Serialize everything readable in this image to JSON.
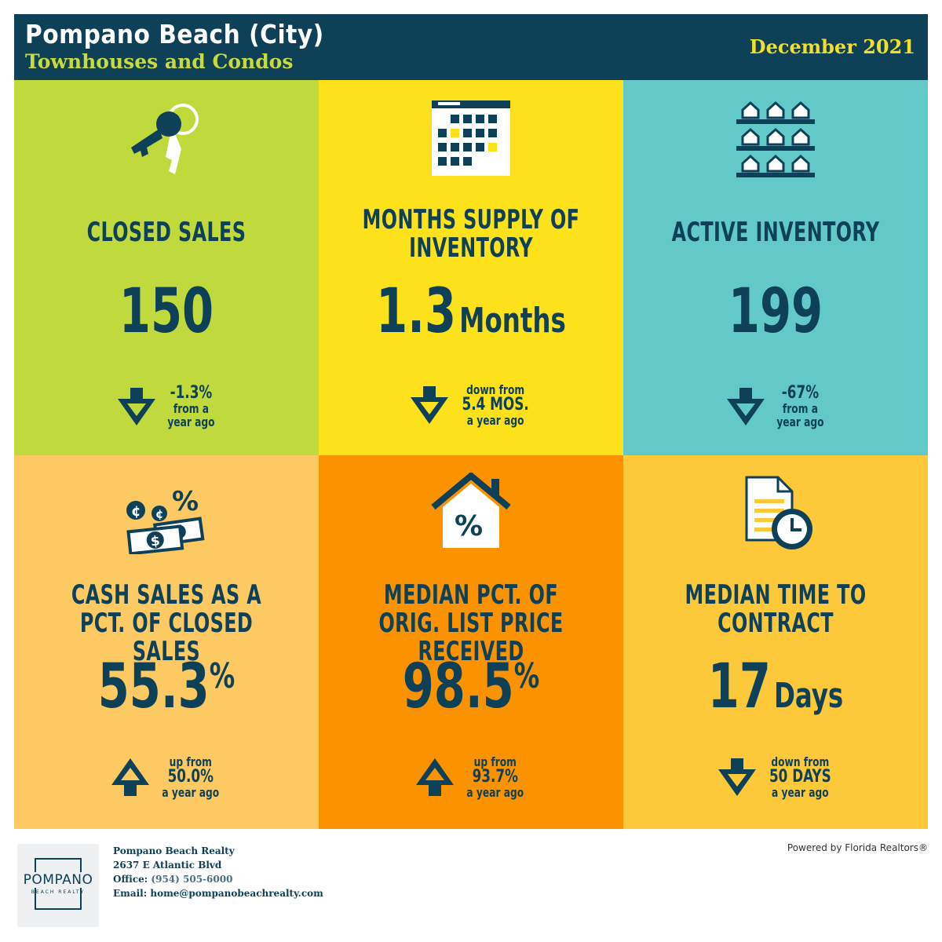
{
  "header": {
    "title": "Pompano Beach (City)",
    "subtitle": "Townhouses and Condos",
    "date": "December 2021"
  },
  "tiles": [
    {
      "label": "CLOSED SALES",
      "value": "150",
      "unit": "",
      "direction": "down",
      "change": [
        "-1.3%",
        "from a",
        "year ago"
      ],
      "bg": "#c0d93c",
      "icon": "keys-icon"
    },
    {
      "label": "MONTHS SUPPLY OF INVENTORY",
      "value": "1.3",
      "unit": "Months",
      "direction": "down",
      "change": [
        "down from",
        "5.4 MOS.",
        "a year ago"
      ],
      "bg": "#fde11b",
      "icon": "calendar-icon"
    },
    {
      "label": "ACTIVE INVENTORY",
      "value": "199",
      "unit": "",
      "direction": "down",
      "change": [
        "-67%",
        "from a",
        "year ago"
      ],
      "bg": "#62c9c8",
      "icon": "houses-grid-icon"
    },
    {
      "label": "CASH SALES AS A PCT. OF CLOSED SALES",
      "value": "55.3",
      "unit": "%",
      "direction": "up",
      "change": [
        "up from",
        "50.0%",
        "a year ago"
      ],
      "bg": "#fdc962",
      "icon": "cash-icon"
    },
    {
      "label": "MEDIAN PCT. OF ORIG. LIST PRICE RECEIVED",
      "value": "98.5",
      "unit": "%",
      "direction": "up",
      "change": [
        "up from",
        "93.7%",
        "a year ago"
      ],
      "bg": "#fb9200",
      "icon": "house-percent-icon"
    },
    {
      "label": "MEDIAN TIME TO CONTRACT",
      "value": "17",
      "unit": "Days",
      "direction": "down",
      "change": [
        "down from",
        "50 DAYS",
        "a year ago"
      ],
      "bg": "#fdc93b",
      "icon": "document-clock-icon"
    }
  ],
  "footer": {
    "logo_name": "POMPANO",
    "logo_tag": "BEACH REALTY",
    "company": "Pompano Beach Realty",
    "address": "2637 E Atlantic Blvd",
    "office_label": "Office:",
    "office_phone": "(954) 505-6000",
    "email_label": "Email:",
    "email": "home@pompanobeachrealty.com",
    "powered": "Powered by Florida Realtors®"
  },
  "colors": {
    "navy": "#0e4058",
    "lime": "#c8db3a",
    "gold": "#f3df2a"
  }
}
